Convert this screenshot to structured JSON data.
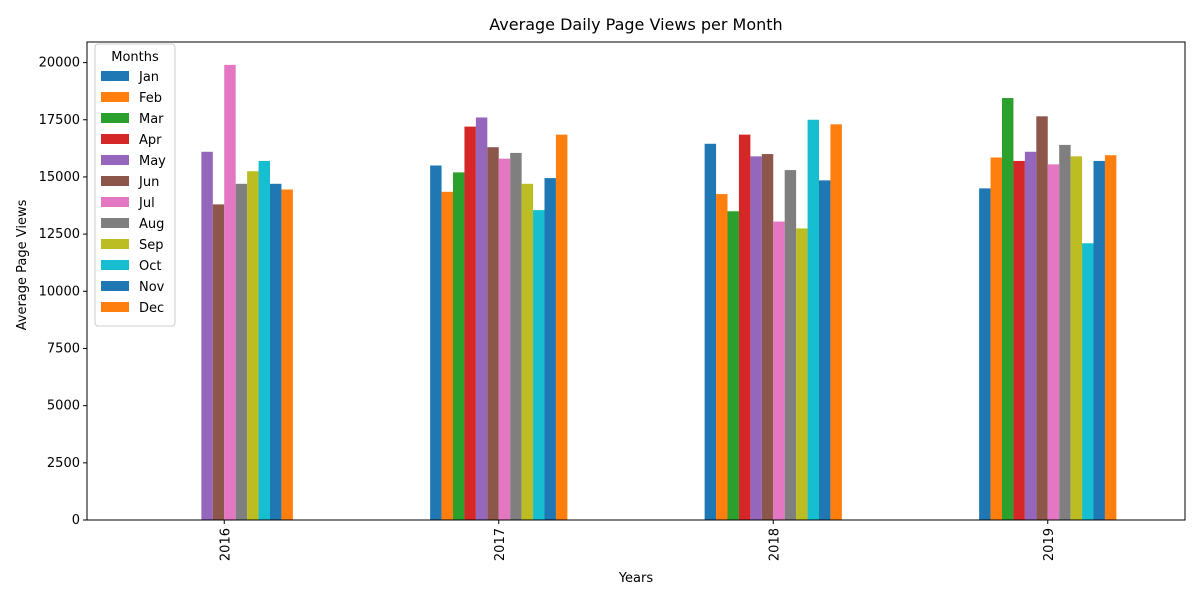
{
  "chart_data": {
    "type": "bar",
    "title": "Average Daily Page Views per Month",
    "xlabel": "Years",
    "ylabel": "Average Page Views",
    "categories": [
      "2016",
      "2017",
      "2018",
      "2019"
    ],
    "ylim": [
      0,
      20900
    ],
    "yticks": [
      0,
      2500,
      5000,
      7500,
      10000,
      12500,
      15000,
      17500,
      20000
    ],
    "grid": false,
    "legend": {
      "title": "Months",
      "placement": "top-left"
    },
    "series": [
      {
        "name": "Jan",
        "color": "#1f77b4",
        "values": [
          null,
          15500,
          16450,
          14500
        ]
      },
      {
        "name": "Feb",
        "color": "#ff7f0e",
        "values": [
          null,
          14350,
          14250,
          15850
        ]
      },
      {
        "name": "Mar",
        "color": "#2ca02c",
        "values": [
          null,
          15200,
          13500,
          18450
        ]
      },
      {
        "name": "Apr",
        "color": "#d62728",
        "values": [
          null,
          17200,
          16850,
          15700
        ]
      },
      {
        "name": "May",
        "color": "#9467bd",
        "values": [
          16100,
          17600,
          15900,
          16100
        ]
      },
      {
        "name": "Jun",
        "color": "#8c564b",
        "values": [
          13800,
          16300,
          16000,
          17650
        ]
      },
      {
        "name": "Jul",
        "color": "#e377c2",
        "values": [
          19900,
          15800,
          13050,
          15550
        ]
      },
      {
        "name": "Aug",
        "color": "#7f7f7f",
        "values": [
          14700,
          16050,
          15300,
          16400
        ]
      },
      {
        "name": "Sep",
        "color": "#bcbd22",
        "values": [
          15250,
          14700,
          12750,
          15900
        ]
      },
      {
        "name": "Oct",
        "color": "#17becf",
        "values": [
          15700,
          13550,
          17500,
          12100
        ]
      },
      {
        "name": "Nov",
        "color": "#1f77b4",
        "values": [
          14700,
          14950,
          14850,
          15700
        ]
      },
      {
        "name": "Dec",
        "color": "#ff7f0e",
        "values": [
          14450,
          16850,
          17300,
          15950
        ]
      }
    ]
  }
}
